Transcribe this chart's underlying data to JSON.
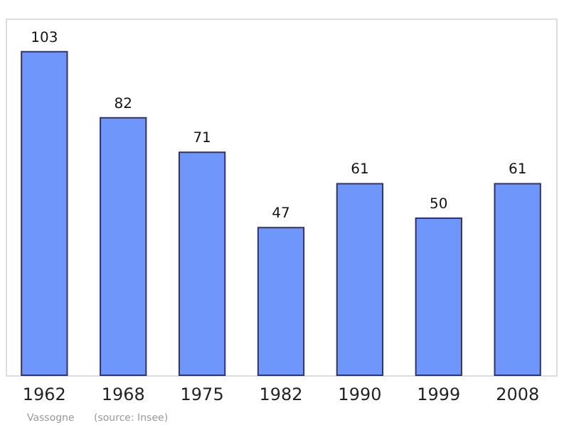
{
  "chart_data": {
    "type": "bar",
    "categories": [
      "1962",
      "1968",
      "1975",
      "1982",
      "1990",
      "1999",
      "2008"
    ],
    "values": [
      103,
      82,
      71,
      47,
      61,
      50,
      61
    ],
    "color": "#6f96fa",
    "ylim": [
      0,
      113.6
    ],
    "data_labels": true,
    "grid": false,
    "tick_labels": "x",
    "annotations": [
      "Vassogne",
      "(source: Insee)"
    ]
  }
}
